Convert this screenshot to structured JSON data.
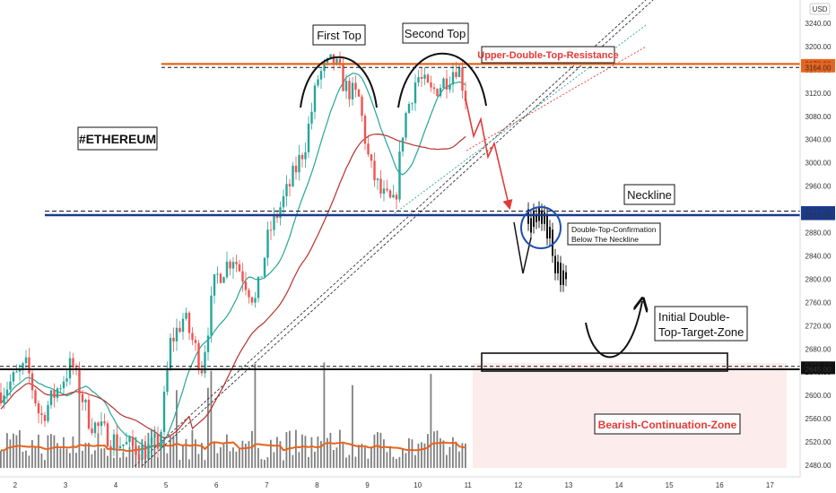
{
  "chart_data": {
    "type": "candlestick",
    "symbol": "#ETHEREUM",
    "currency": "USD",
    "ylim": [
      2460,
      3280
    ],
    "xlim": [
      1.7,
      17.6
    ],
    "y_ticks": [
      3240,
      3200,
      3160,
      3120,
      3080,
      3040,
      3000,
      2960,
      2920,
      2880,
      2840,
      2800,
      2760,
      2720,
      2680,
      2640,
      2600,
      2560,
      2520,
      2480
    ],
    "x_ticks": [
      "2",
      "3",
      "4",
      "5",
      "6",
      "7",
      "8",
      "9",
      "10",
      "11",
      "12",
      "13",
      "14",
      "15",
      "16",
      "17"
    ],
    "price_tags": [
      {
        "value": "3170.00",
        "price": 3170,
        "color": "#e8641e"
      },
      {
        "value": "3164.00",
        "price": 3164,
        "color": "#e8641e"
      },
      {
        "value": "2917.00",
        "price": 2917,
        "color": "#1a3a8f"
      },
      {
        "value": "2910.00",
        "price": 2910,
        "color": "#1a3a8f"
      },
      {
        "value": "2650.00",
        "price": 2650,
        "color": "#111111"
      },
      {
        "value": "2645.00",
        "price": 2645,
        "color": "#111111"
      }
    ],
    "levels": [
      {
        "name": "Upper-Double-Top-Resistance",
        "price": 3168,
        "color": "#e8641e"
      },
      {
        "name": "Neckline",
        "price": 2913,
        "color": "#1a3a8f"
      },
      {
        "name": "Initial Double-Top-Target-Zone",
        "price": 2647,
        "color": "#111111"
      }
    ],
    "annotations": {
      "first_top": "First Top",
      "second_top": "Second Top",
      "resistance_label": "Upper-Double-Top-Resistance",
      "neckline_label": "Neckline",
      "symbol_label": "#ETHEREUM",
      "confirmation_line1": "Double-Top-Confirmation",
      "confirmation_line2": "Below The Neckline",
      "target_line1": "Initial Double-",
      "target_line2": "Top-Target-Zone",
      "bearish_zone": "Bearish-Continuation-Zone"
    },
    "colors": {
      "up": "#26a69a",
      "down": "#ef5350",
      "resistance": "#e8641e",
      "neckline": "#1a3a8f",
      "projection_arrow": "#e53935",
      "zone_fill": "#fdecec",
      "ma_fast": "#26a69a",
      "ma_slow": "#b7312c",
      "volume_ma": "#e8641e"
    }
  }
}
